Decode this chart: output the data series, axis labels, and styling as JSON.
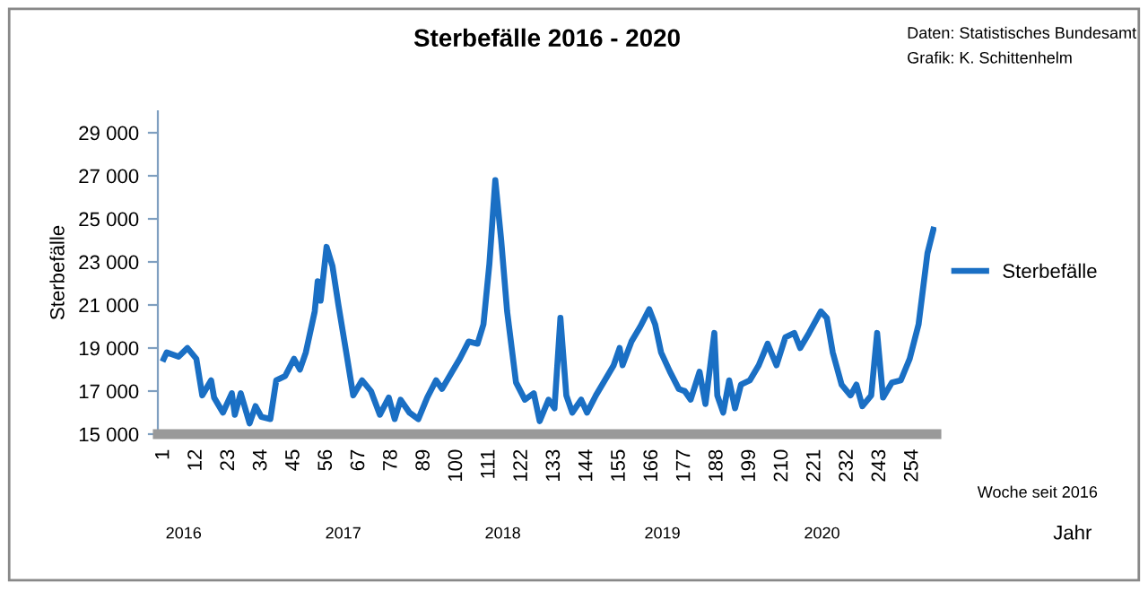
{
  "chart_data": {
    "type": "line",
    "title": "Sterbefälle 2016 - 2020",
    "xlabel": "Woche seit 2016",
    "ylabel": "Sterbefälle",
    "annotations": [
      "Daten: Statistisches Bundesamt",
      "Grafik: K. Schittenhelm",
      "2016",
      "2017",
      "2018",
      "2019",
      "2020",
      "Jahr"
    ],
    "xlim": [
      -1,
      262
    ],
    "xticks": [
      1,
      12,
      23,
      34,
      45,
      56,
      67,
      78,
      89,
      100,
      111,
      122,
      133,
      144,
      155,
      166,
      177,
      188,
      199,
      210,
      221,
      232,
      243,
      254
    ],
    "ylim": [
      15000,
      30000
    ],
    "yticks": [
      {
        "value": 15000,
        "label": "15 000"
      },
      {
        "value": 17000,
        "label": "17 000"
      },
      {
        "value": 19000,
        "label": "19 000"
      },
      {
        "value": 21000,
        "label": "21 000"
      },
      {
        "value": 23000,
        "label": "23 000"
      },
      {
        "value": 25000,
        "label": "25 000"
      },
      {
        "value": 27000,
        "label": "27 000"
      },
      {
        "value": 29000,
        "label": "29 000"
      }
    ],
    "grid": false,
    "legend": "right",
    "marker": "none",
    "line_style": "solid",
    "series": [
      {
        "name": "Sterbefälle",
        "color": "#1a6fc4",
        "x": [
          1,
          2,
          6,
          9,
          12,
          14,
          17,
          18,
          21,
          24,
          25,
          27,
          30,
          32,
          34,
          37,
          39,
          42,
          45,
          47,
          49,
          52,
          53,
          54,
          56,
          58,
          60,
          63,
          65,
          68,
          71,
          74,
          77,
          79,
          81,
          84,
          87,
          90,
          93,
          95,
          98,
          101,
          104,
          107,
          109,
          111,
          113,
          115,
          117,
          120,
          123,
          126,
          128,
          131,
          133,
          135,
          137,
          139,
          142,
          144,
          147,
          150,
          153,
          155,
          156,
          159,
          162,
          165,
          167,
          169,
          172,
          175,
          177,
          179,
          182,
          184,
          187,
          188,
          190,
          192,
          194,
          196,
          199,
          202,
          205,
          208,
          211,
          214,
          216,
          219,
          223,
          225,
          227,
          230,
          233,
          235,
          237,
          240,
          242,
          244,
          247,
          250,
          253,
          256,
          259,
          261
        ],
        "values": [
          18500,
          18800,
          18600,
          19000,
          18500,
          16800,
          17500,
          16700,
          16000,
          16900,
          15900,
          16900,
          15500,
          16300,
          15800,
          15700,
          17500,
          17700,
          18500,
          18000,
          18800,
          20700,
          22100,
          21200,
          23700,
          22800,
          21000,
          18500,
          16800,
          17500,
          17000,
          15900,
          16700,
          15700,
          16600,
          16000,
          15700,
          16700,
          17500,
          17100,
          17800,
          18500,
          19300,
          19200,
          20100,
          22900,
          26800,
          24000,
          20700,
          17400,
          16600,
          16900,
          15600,
          16600,
          16200,
          20400,
          16800,
          16000,
          16600,
          16000,
          16800,
          17500,
          18200,
          19000,
          18200,
          19300,
          20000,
          20800,
          20100,
          18800,
          17900,
          17100,
          17000,
          16600,
          17900,
          16400,
          19700,
          16800,
          16000,
          17500,
          16200,
          17300,
          17500,
          18200,
          19200,
          18200,
          19500,
          19700,
          19000,
          19700,
          20700,
          20400,
          18800,
          17300,
          16800,
          17300,
          16300,
          16800,
          19700,
          16700,
          17400,
          17500,
          18500,
          20100,
          23400,
          24500
        ]
      }
    ]
  }
}
